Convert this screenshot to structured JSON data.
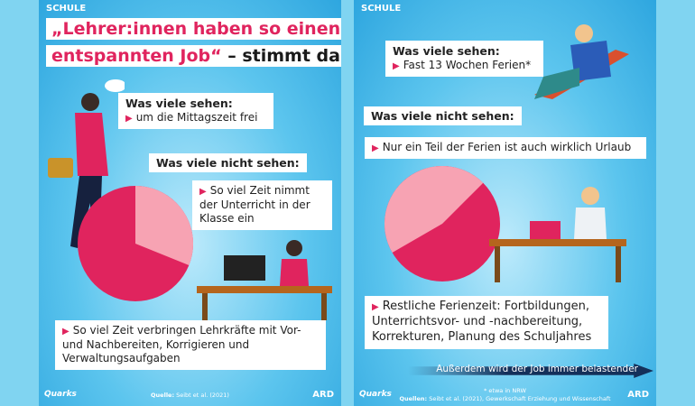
{
  "left": {
    "tag": "SCHULE",
    "title_line1": "„Lehrer:innen haben so einen",
    "title_line2_pink": "entspannten Job“",
    "title_line2_dark": " – stimmt das?",
    "seen_heading": "Was viele sehen:",
    "seen_item": "um die Mittagszeit frei",
    "not_seen_heading": "Was viele nicht sehen:",
    "slice_light_text": "So viel Zeit nimmt der Unterricht in der Klasse ein",
    "slice_dark_text": "So viel Zeit verbringen Lehrkräfte mit Vor- und Nachbereiten, Korrigieren und Verwaltungsaufgaben",
    "source_label": "Quelle:",
    "source": " Seibt et al. (2021)",
    "quarks": "Quarks",
    "ard": "ARD"
  },
  "right": {
    "tag": "SCHULE",
    "seen_heading": "Was viele sehen:",
    "seen_item": "Fast 13 Wochen Ferien*",
    "not_seen_heading": "Was viele nicht sehen:",
    "slice_light_text": "Nur ein Teil der Ferien ist auch wirklich Urlaub",
    "slice_dark_text": "Restliche Ferienzeit: Fortbildungen, Unterrichtsvor- und -nachbereitung, Korrekturen, Planung des Schuljahres",
    "arrow_text": "Außerdem wird der Job immer belastender",
    "footnote": "* etwa in NRW",
    "source_label": "Quellen:",
    "source": " Seibt et al. (2021), Gewerkschaft Erziehung und Wissenschaft",
    "quarks": "Quarks",
    "ard": "ARD"
  },
  "colors": {
    "light_slice": "#f7a3b3",
    "dark_slice": "#e0245e",
    "accent": "#e0245e"
  }
}
